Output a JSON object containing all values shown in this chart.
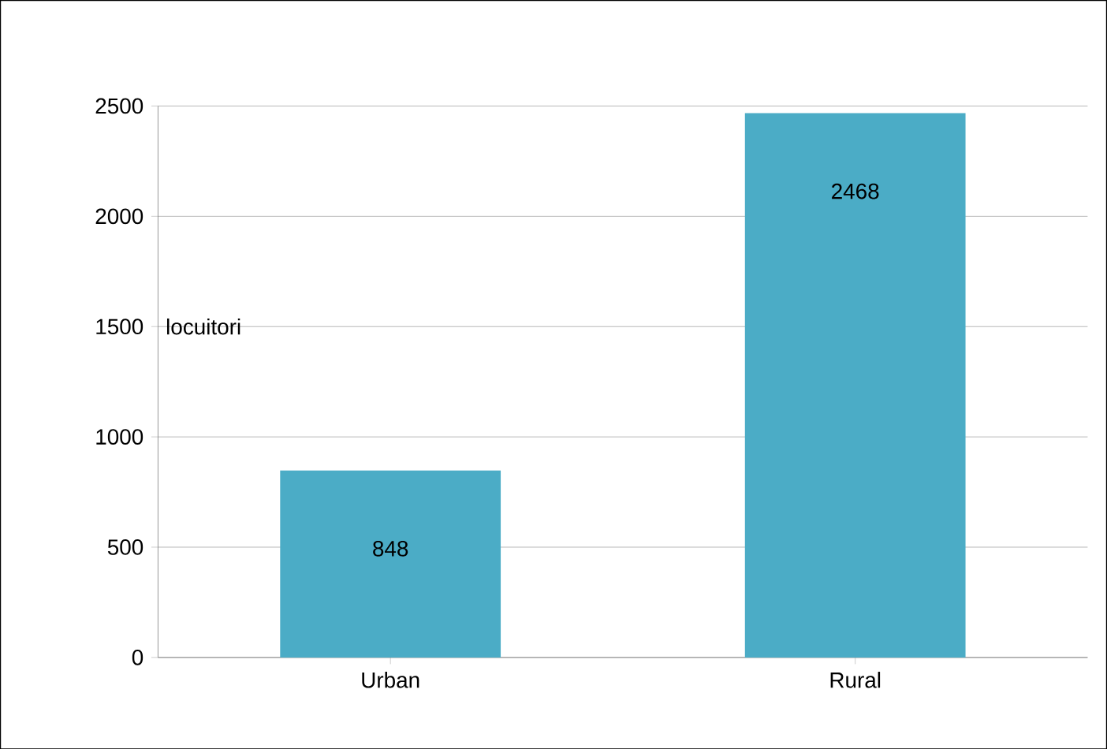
{
  "chart_data": {
    "type": "bar",
    "ylabel": "locuitori",
    "categories": [
      "Urban",
      "Rural"
    ],
    "values": [
      848,
      2468
    ],
    "color": "#4bacc6",
    "ylim": [
      0,
      2500
    ],
    "yticks": [
      0,
      500,
      1000,
      1500,
      2000,
      2500
    ],
    "grid": "y",
    "data_labels": true
  }
}
